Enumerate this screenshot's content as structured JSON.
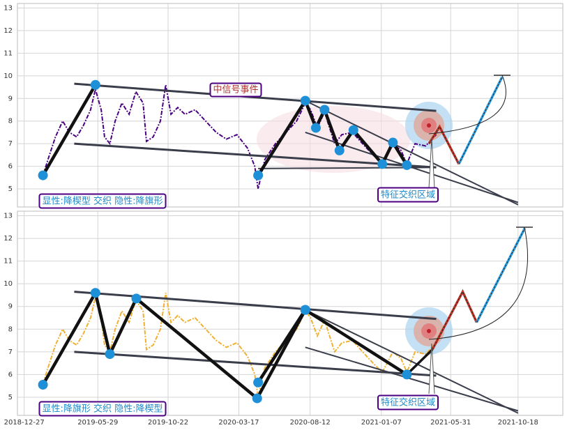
{
  "chart_data": [
    {
      "type": "line",
      "ylim": [
        4.2,
        13.2
      ],
      "yticks": [
        5,
        6,
        7,
        8,
        9,
        10,
        11,
        12,
        13
      ],
      "xlim": [
        "2018-12-13",
        "2022-01-19"
      ],
      "grid": true,
      "price": {
        "color": "#4b0082",
        "x": [
          "2019-02-04",
          "2019-02-16",
          "2019-03-02",
          "2019-03-17",
          "2019-03-31",
          "2019-04-15",
          "2019-04-29",
          "2019-05-14",
          "2019-05-24",
          "2019-06-05",
          "2019-06-12",
          "2019-06-23",
          "2019-07-04",
          "2019-07-18",
          "2019-08-02",
          "2019-08-16",
          "2019-08-31",
          "2019-09-07",
          "2019-09-21",
          "2019-10-06",
          "2019-10-17",
          "2019-10-28",
          "2019-11-11",
          "2019-11-26",
          "2019-12-17",
          "2020-01-08",
          "2020-01-30",
          "2020-02-20",
          "2020-03-13",
          "2020-04-04",
          "2020-04-19",
          "2020-04-26",
          "2020-05-10",
          "2020-06-01",
          "2020-06-23",
          "2020-07-15",
          "2020-08-02",
          "2020-08-13",
          "2020-08-27",
          "2020-09-11",
          "2020-10-02",
          "2020-10-17",
          "2020-11-08",
          "2020-11-29",
          "2020-12-21",
          "2021-01-09",
          "2021-01-31",
          "2021-02-17",
          "2021-03-01",
          "2021-03-18",
          "2021-04-09",
          "2021-05-01"
        ],
        "values": [
          5.6,
          6.4,
          7.3,
          8.0,
          7.5,
          7.3,
          7.8,
          8.5,
          9.4,
          8.5,
          7.3,
          7.0,
          8.0,
          8.8,
          8.3,
          9.3,
          8.8,
          7.1,
          7.3,
          8.0,
          9.6,
          8.3,
          8.6,
          8.3,
          8.5,
          8.0,
          7.5,
          7.2,
          7.4,
          6.8,
          6.0,
          5.0,
          6.3,
          7.0,
          7.5,
          8.0,
          8.8,
          8.5,
          7.7,
          8.4,
          7.0,
          7.4,
          7.5,
          7.0,
          6.5,
          6.1,
          7.0,
          6.7,
          6.1,
          7.0,
          6.9,
          7.4
        ]
      },
      "zigzag": {
        "x": [
          "2019-02-04",
          "2019-05-24",
          null,
          "2020-04-26",
          "2020-08-02",
          "2020-08-24",
          "2020-09-11",
          "2020-10-12",
          "2020-11-10",
          "2021-01-09",
          "2021-01-31",
          "2021-03-01"
        ],
        "values": [
          5.6,
          9.6,
          null,
          5.6,
          8.9,
          7.7,
          8.5,
          6.7,
          7.6,
          6.1,
          7.05,
          6.05
        ]
      },
      "trendlines": [
        {
          "x": [
            "2019-04-10",
            "2021-05-01"
          ],
          "values": [
            9.65,
            8.45
          ]
        },
        {
          "x": [
            "2019-04-10",
            "2021-05-01"
          ],
          "values": [
            7.0,
            5.95
          ]
        },
        {
          "x": [
            "2020-04-26",
            "2021-05-01"
          ],
          "values": [
            5.9,
            5.95
          ]
        },
        {
          "x": [
            "2020-08-02",
            "2021-10-18"
          ],
          "values": [
            8.9,
            4.3
          ]
        },
        {
          "x": [
            "2020-08-02",
            "2021-10-18"
          ],
          "values": [
            7.5,
            4.4
          ]
        }
      ],
      "forecast": [
        {
          "color": "#c0392b",
          "x": [
            "2021-04-16",
            "2021-05-08",
            "2021-06-17"
          ],
          "values": [
            7.0,
            7.75,
            6.1
          ]
        },
        {
          "color": "#2e9fe0",
          "x": [
            "2021-06-17",
            "2021-09-15"
          ],
          "values": [
            6.1,
            9.95
          ]
        }
      ],
      "annotations": [
        {
          "text": "中信号事件"
        },
        {
          "text": "特征交织区域"
        },
        {
          "text": "显性:降楔型 交织 隐性:降旗形"
        }
      ]
    },
    {
      "type": "line",
      "ylim": [
        4.2,
        13.2
      ],
      "yticks": [
        5,
        6,
        7,
        8,
        9,
        10,
        11,
        12,
        13
      ],
      "xlim": [
        "2018-12-13",
        "2022-01-19"
      ],
      "grid": true,
      "xticks": [
        "2018-12-27",
        "2019-05-29",
        "2019-10-22",
        "2020-03-17",
        "2020-08-12",
        "2021-01-07",
        "2021-05-31",
        "2021-10-18"
      ],
      "price": {
        "color": "#f0b030",
        "x": [
          "2019-02-04",
          "2019-02-16",
          "2019-03-02",
          "2019-03-17",
          "2019-03-31",
          "2019-04-15",
          "2019-04-29",
          "2019-05-14",
          "2019-05-24",
          "2019-06-05",
          "2019-06-12",
          "2019-06-23",
          "2019-07-04",
          "2019-07-18",
          "2019-08-02",
          "2019-08-16",
          "2019-08-31",
          "2019-09-07",
          "2019-09-21",
          "2019-10-06",
          "2019-10-17",
          "2019-10-28",
          "2019-11-11",
          "2019-11-26",
          "2019-12-17",
          "2020-01-08",
          "2020-01-30",
          "2020-02-20",
          "2020-03-13",
          "2020-04-04",
          "2020-04-19",
          "2020-04-26",
          "2020-05-10",
          "2020-06-01",
          "2020-06-23",
          "2020-07-15",
          "2020-08-02",
          "2020-08-13",
          "2020-08-27",
          "2020-09-11",
          "2020-10-02",
          "2020-10-17",
          "2020-11-08",
          "2020-11-29",
          "2020-12-21",
          "2021-01-09",
          "2021-01-31",
          "2021-02-17",
          "2021-03-01",
          "2021-03-18",
          "2021-04-09",
          "2021-05-01"
        ],
        "values": [
          5.6,
          6.4,
          7.3,
          8.0,
          7.5,
          7.3,
          7.8,
          8.5,
          9.4,
          8.5,
          7.3,
          7.0,
          8.0,
          8.8,
          8.3,
          9.3,
          8.8,
          7.1,
          7.3,
          8.0,
          9.6,
          8.3,
          8.6,
          8.3,
          8.5,
          8.0,
          7.5,
          7.2,
          7.4,
          6.8,
          6.0,
          5.0,
          6.3,
          7.0,
          7.5,
          8.0,
          8.8,
          8.5,
          7.7,
          8.4,
          7.0,
          7.4,
          7.5,
          7.0,
          6.5,
          6.1,
          7.0,
          6.7,
          6.1,
          7.0,
          6.9,
          7.4
        ]
      },
      "zigzag": {
        "x": [
          "2019-02-04",
          "2019-05-24",
          "2019-06-23",
          "2019-08-17",
          "2020-04-24",
          "2020-08-02",
          "2021-03-01",
          null,
          "2020-04-26",
          "2020-08-02"
        ],
        "values": [
          5.55,
          9.6,
          6.9,
          9.35,
          4.95,
          8.85,
          6.0,
          null,
          5.65,
          8.85
        ]
      },
      "trendlines": [
        {
          "x": [
            "2019-04-10",
            "2021-05-01"
          ],
          "values": [
            9.65,
            8.45
          ]
        },
        {
          "x": [
            "2019-04-10",
            "2021-05-01"
          ],
          "values": [
            7.0,
            5.95
          ]
        },
        {
          "x": [
            "2020-08-02",
            "2021-10-18"
          ],
          "values": [
            8.85,
            4.3
          ]
        },
        {
          "x": [
            "2020-08-02",
            "2021-10-18"
          ],
          "values": [
            7.2,
            4.4
          ]
        }
      ],
      "forecast": [
        {
          "color": "#111111",
          "x": [
            "2021-03-01",
            "2021-04-23"
          ],
          "values": [
            6.0,
            7.1
          ]
        },
        {
          "color": "#c0392b",
          "x": [
            "2021-04-23",
            "2021-06-25",
            "2021-07-24"
          ],
          "values": [
            7.1,
            9.65,
            8.3
          ]
        },
        {
          "color": "#2e9fe0",
          "x": [
            "2021-07-24",
            "2021-11-01"
          ],
          "values": [
            8.3,
            12.45
          ]
        }
      ],
      "annotations": [
        {
          "text": "特征交织区域"
        },
        {
          "text": "显性:降旗形 交织 隐性:降楔型"
        }
      ]
    }
  ]
}
